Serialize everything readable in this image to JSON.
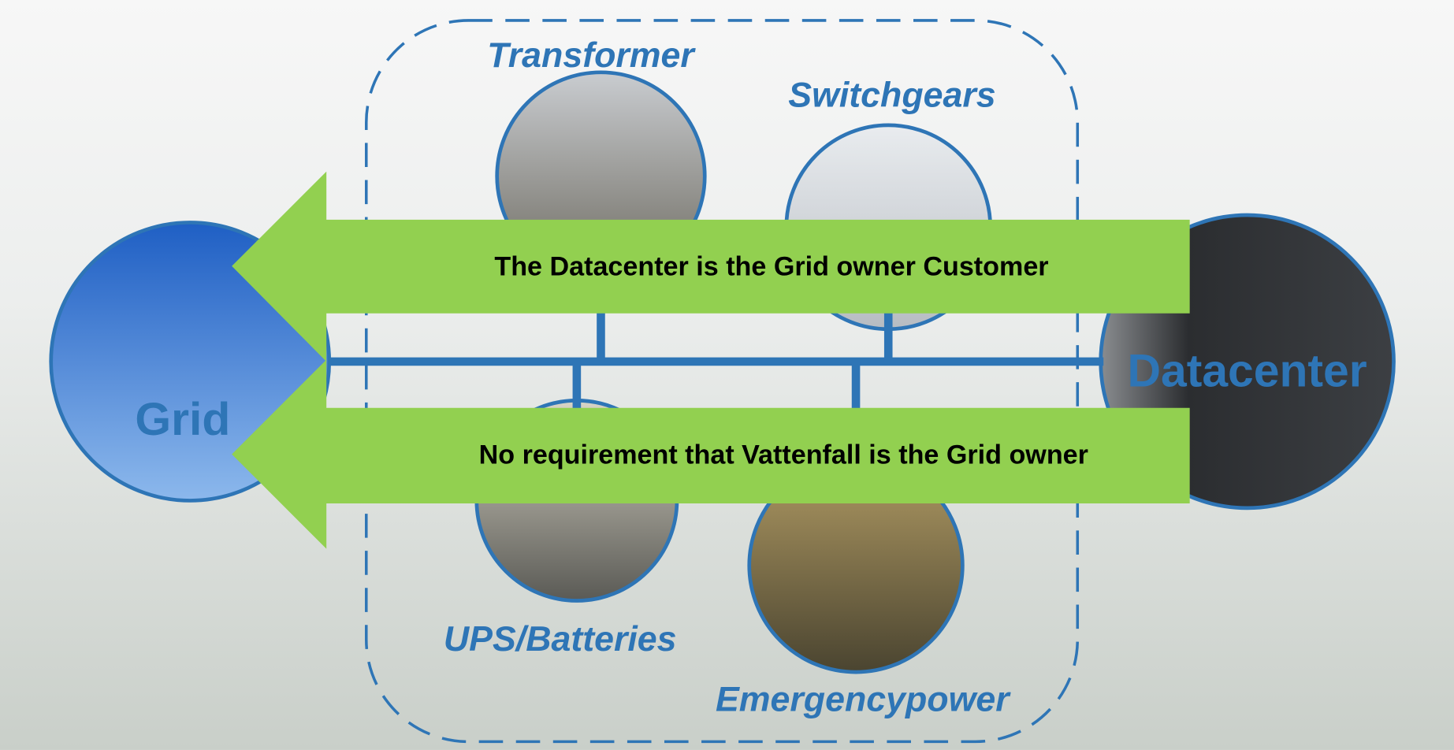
{
  "nodes": {
    "grid": {
      "label": "Grid"
    },
    "datacenter": {
      "label": "Datacenter"
    },
    "transformer": {
      "label": "Transformer"
    },
    "switchgears": {
      "label": "Switchgears"
    },
    "ups": {
      "label": "UPS/Batteries"
    },
    "emergency": {
      "label": "Emergencypower"
    }
  },
  "arrows": [
    {
      "label": "The Datacenter is the Grid owner Customer"
    },
    {
      "label": "No requirement that Vattenfall is the Grid owner"
    }
  ]
}
